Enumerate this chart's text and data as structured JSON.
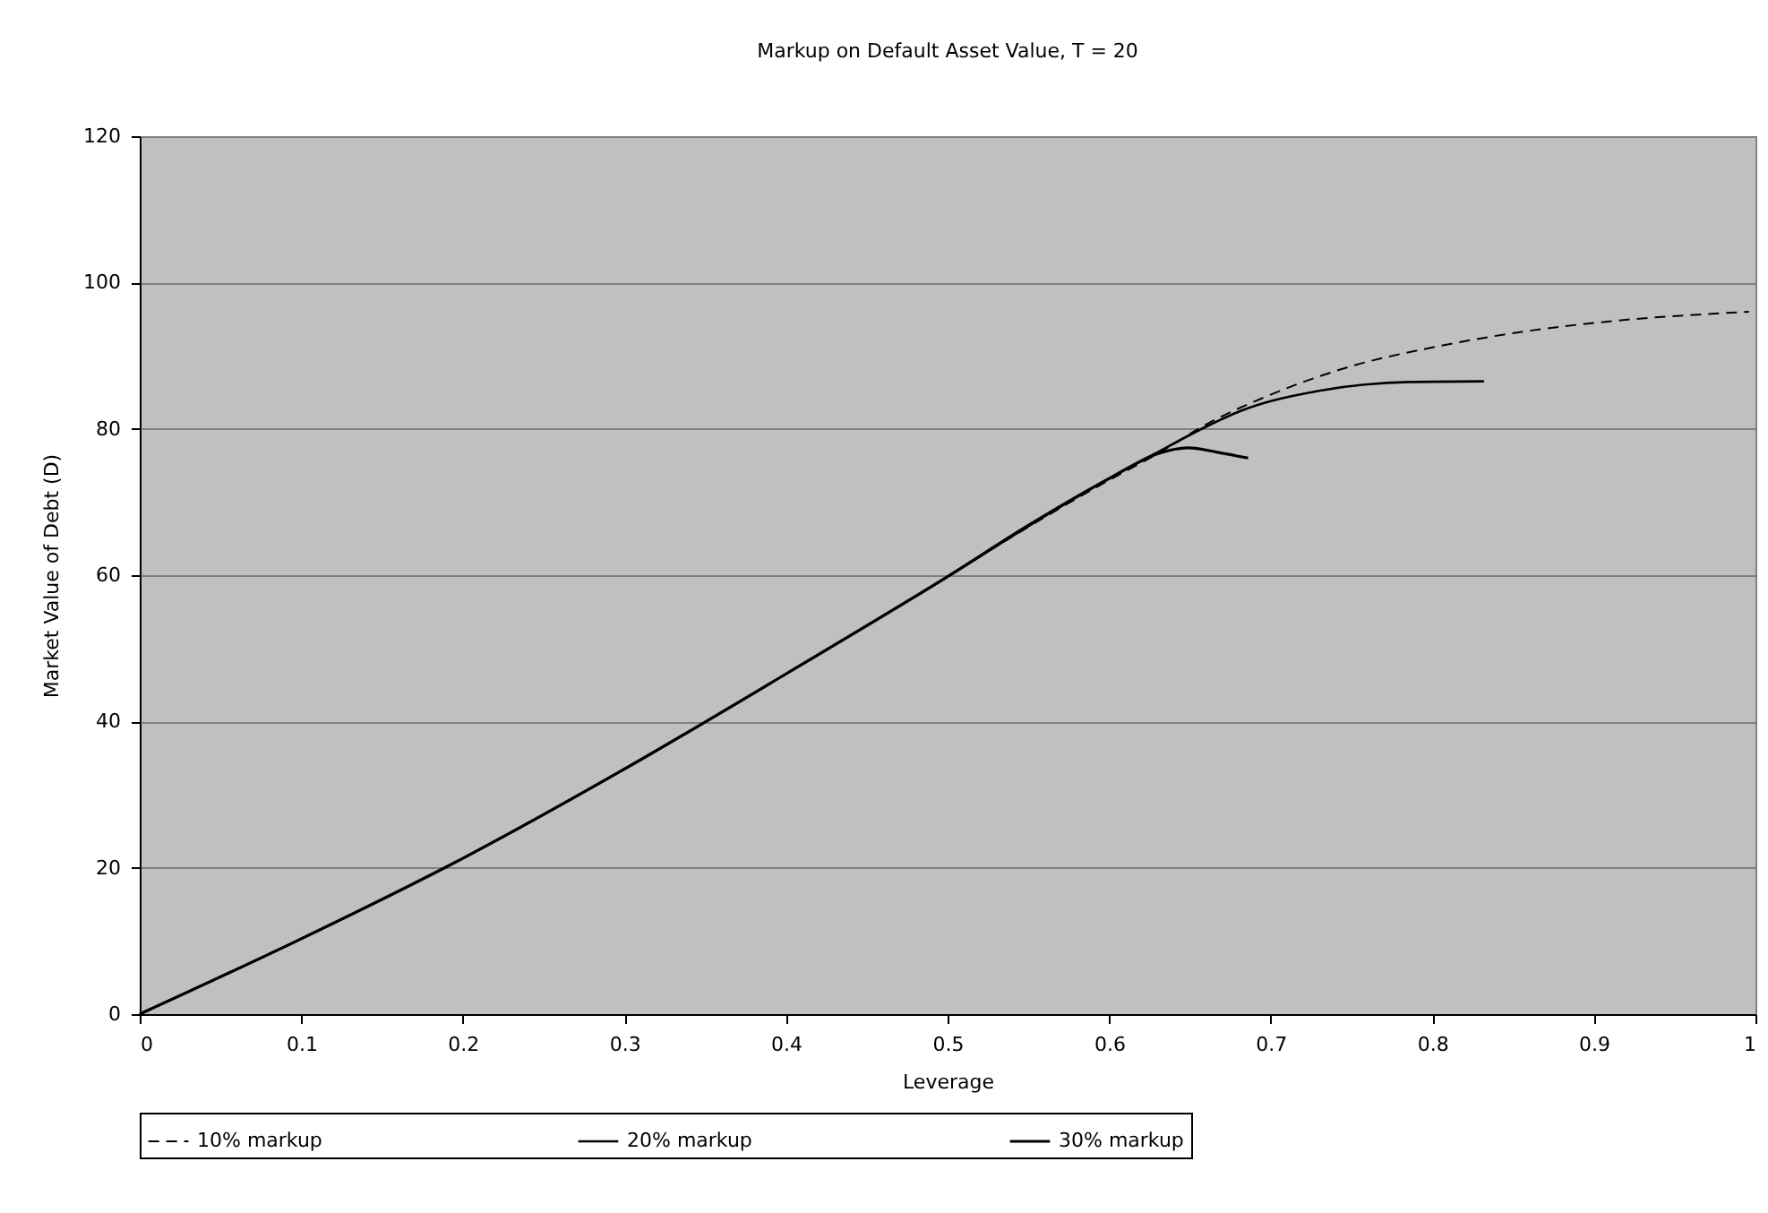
{
  "chart_data": {
    "type": "line",
    "title": "Markup on Default Asset Value, T = 20",
    "xlabel": "Leverage",
    "ylabel": "Market Value of Debt (D)",
    "xlim": [
      0,
      1
    ],
    "xticks": [
      0,
      0.1,
      0.2,
      0.3,
      0.4,
      0.5,
      0.6,
      0.7,
      0.8,
      0.9,
      1
    ],
    "ylim": [
      0,
      120
    ],
    "yticks": [
      0,
      20,
      40,
      60,
      80,
      100,
      120
    ],
    "grid": "y",
    "legend": "bottom",
    "marker": "none",
    "series": [
      {
        "name": "10% markup",
        "color": "#000000",
        "line_style": "dashed",
        "x": [
          0,
          0.1,
          0.2,
          0.3,
          0.4,
          0.5,
          0.55,
          0.6,
          0.63,
          0.66,
          0.697,
          0.749,
          0.804,
          0.86,
          0.915,
          0.996
        ],
        "values": [
          0,
          10.3,
          21.3,
          33.5,
          46.5,
          59.8,
          66.6,
          73.0,
          76.6,
          80.6,
          84.4,
          88.5,
          91.3,
          93.4,
          94.8,
          96.0
        ]
      },
      {
        "name": "20% markup",
        "color": "#000000",
        "line_style": "solid",
        "x": [
          0,
          0.1,
          0.2,
          0.3,
          0.4,
          0.5,
          0.55,
          0.6,
          0.63,
          0.66,
          0.682,
          0.73,
          0.786,
          0.832
        ],
        "values": [
          0,
          10.3,
          21.3,
          33.5,
          46.5,
          59.8,
          66.7,
          73.2,
          76.8,
          80.3,
          82.5,
          85.2,
          86.4,
          86.5
        ]
      },
      {
        "name": "30% markup",
        "color": "#000000",
        "line_style": "solid",
        "x": [
          0,
          0.1,
          0.2,
          0.3,
          0.4,
          0.5,
          0.55,
          0.6,
          0.63,
          0.649,
          0.667,
          0.686
        ],
        "values": [
          0,
          10.3,
          21.3,
          33.5,
          46.5,
          59.8,
          66.8,
          73.2,
          76.6,
          77.4,
          76.8,
          76.0
        ]
      }
    ]
  }
}
